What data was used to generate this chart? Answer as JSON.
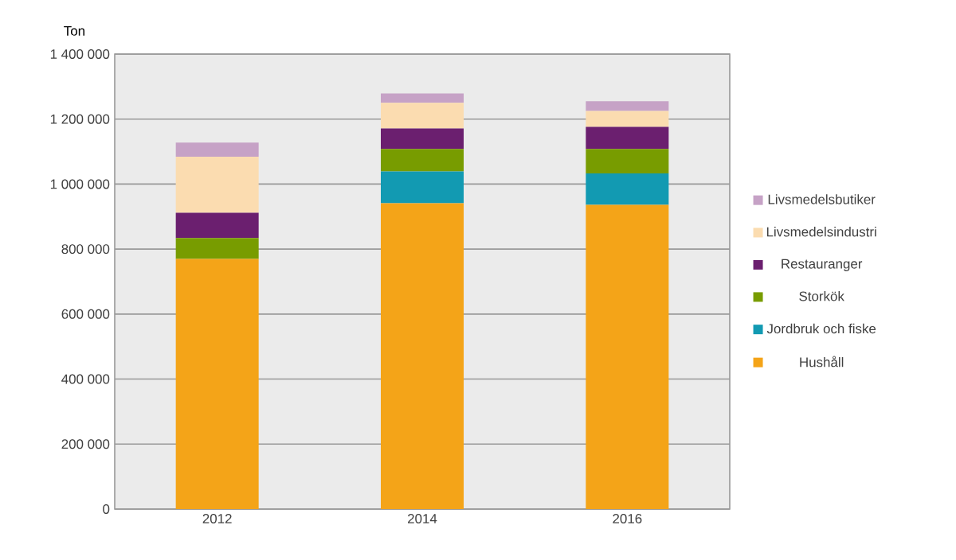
{
  "chart_data": {
    "type": "bar",
    "stacked": true,
    "ylabel": "Ton",
    "categories": [
      "2012",
      "2014",
      "2016"
    ],
    "series": [
      {
        "name": "Hushåll",
        "color": "#f4a418",
        "values": [
          770000,
          941000,
          936000
        ]
      },
      {
        "name": "Jordbruk och fiske",
        "color": "#129ab2",
        "values": [
          0,
          98000,
          97000
        ]
      },
      {
        "name": "Storkök",
        "color": "#789c00",
        "values": [
          64000,
          69000,
          75000
        ]
      },
      {
        "name": "Restauranger",
        "color": "#6b1f6f",
        "values": [
          78000,
          63000,
          68000
        ]
      },
      {
        "name": "Livsmedelsindustri",
        "color": "#fbdcb0",
        "values": [
          172000,
          79000,
          49000
        ]
      },
      {
        "name": "Livsmedelsbutiker",
        "color": "#c6a2c6",
        "values": [
          44000,
          29000,
          30000
        ]
      }
    ],
    "ylim": [
      0,
      1400000
    ],
    "yticks": [
      {
        "value": 0,
        "label": "0"
      },
      {
        "value": 200000,
        "label": "200 000"
      },
      {
        "value": 400000,
        "label": "400 000"
      },
      {
        "value": 600000,
        "label": "600 000"
      },
      {
        "value": 800000,
        "label": "800 000"
      },
      {
        "value": 1000000,
        "label": "1 000 000"
      },
      {
        "value": 1200000,
        "label": "1 200 000"
      },
      {
        "value": 1400000,
        "label": "1 400 000"
      }
    ],
    "grid": "y",
    "legend": "right"
  }
}
